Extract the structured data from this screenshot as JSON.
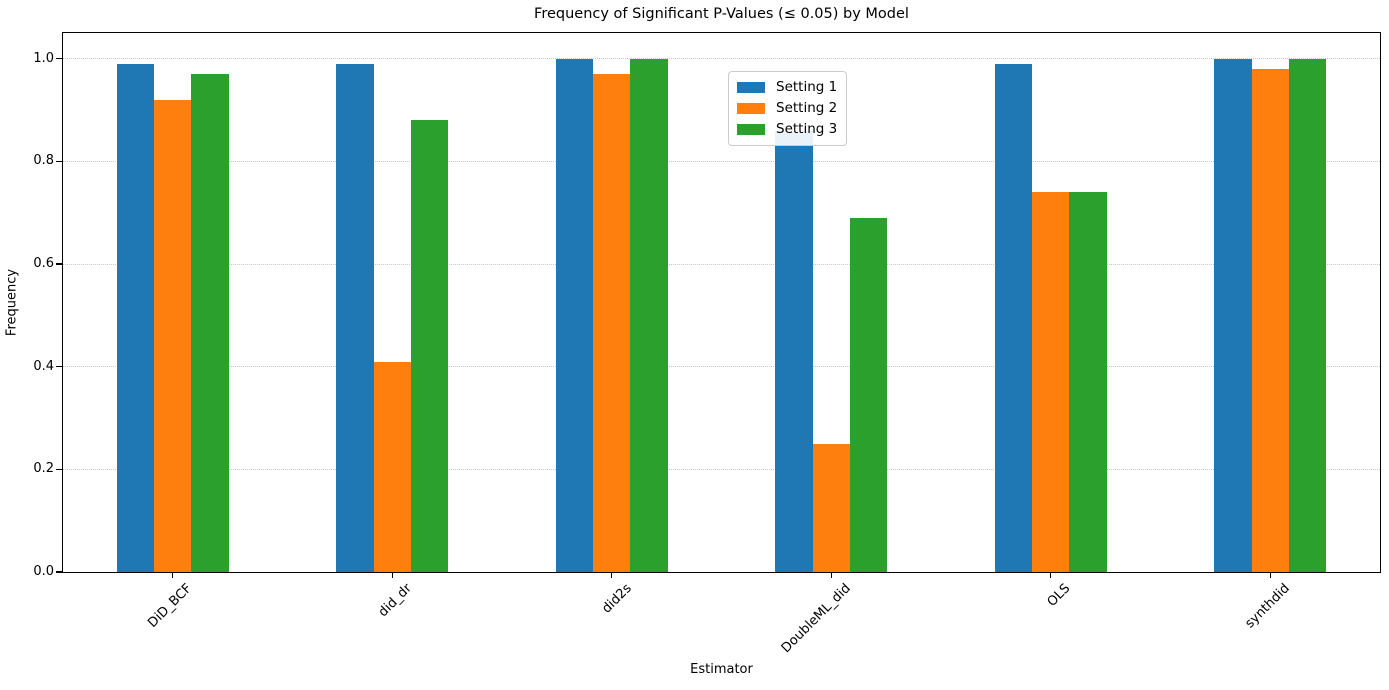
{
  "chart_data": {
    "type": "bar",
    "title": "Frequency of Significant P-Values (≤ 0.05) by Model",
    "xlabel": "Estimator",
    "ylabel": "Frequency",
    "categories": [
      "DiD_BCF",
      "did_dr",
      "did2s",
      "DoubleML_did",
      "OLS",
      "synthdid"
    ],
    "series": [
      {
        "name": "Setting 1",
        "color": "#1f77b4",
        "values": [
          0.99,
          0.99,
          1.0,
          0.86,
          0.99,
          1.0
        ]
      },
      {
        "name": "Setting 2",
        "color": "#ff7f0e",
        "values": [
          0.92,
          0.41,
          0.97,
          0.25,
          0.74,
          0.98
        ]
      },
      {
        "name": "Setting 3",
        "color": "#2ca02c",
        "values": [
          0.97,
          0.88,
          1.0,
          0.69,
          0.74,
          1.0
        ]
      }
    ],
    "ylim": [
      0,
      1.05
    ],
    "yticks": [
      "0.0",
      "0.2",
      "0.4",
      "0.6",
      "0.8",
      "1.0"
    ],
    "grid": "horizontal dotted",
    "legend": {
      "position": "upper center"
    }
  }
}
